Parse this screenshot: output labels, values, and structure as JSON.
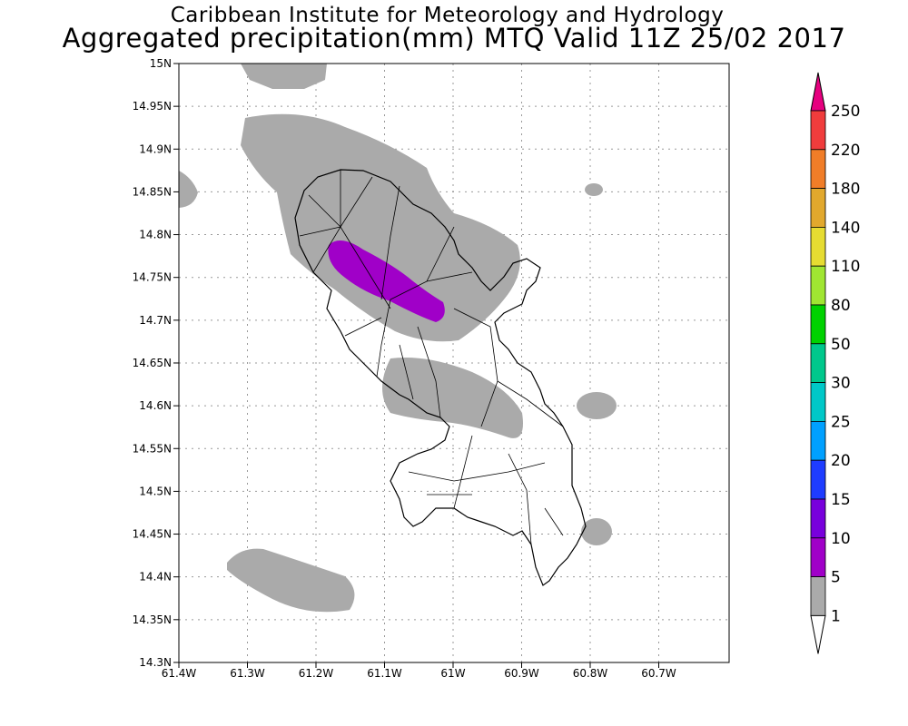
{
  "title": {
    "line1": "Caribbean Institute for Meteorology and Hydrology",
    "line2": "Aggregated precipitation(mm) MTQ Valid 11Z 25/02 2017"
  },
  "map": {
    "lon_ticks": [
      "61.4W",
      "61.3W",
      "61.2W",
      "61.1W",
      "61W",
      "60.9W",
      "60.8W",
      "60.7W"
    ],
    "lat_ticks": [
      "15N",
      "14.95N",
      "14.9N",
      "14.85N",
      "14.8N",
      "14.75N",
      "14.7N",
      "14.65N",
      "14.6N",
      "14.55N",
      "14.5N",
      "14.45N",
      "14.4N",
      "14.35N",
      "14.3N"
    ],
    "region": "Martinique"
  },
  "colorbar": {
    "labels": [
      "250",
      "220",
      "180",
      "140",
      "110",
      "80",
      "50",
      "30",
      "25",
      "20",
      "15",
      "10",
      "5",
      "1"
    ],
    "colors": [
      "#f03c3c",
      "#f07d28",
      "#e1a82d",
      "#e6dc32",
      "#a0e632",
      "#00d200",
      "#00c88c",
      "#00c8c8",
      "#00a0ff",
      "#1e3cff",
      "#7800dc",
      "#a000c8",
      "#aaaaaa"
    ],
    "top_arrow_color": "#e6007f",
    "bottom_arrow_color": "#ffffff"
  },
  "precip_colors": {
    "light": "#aaaaaa",
    "moderate": "#a000c8"
  }
}
